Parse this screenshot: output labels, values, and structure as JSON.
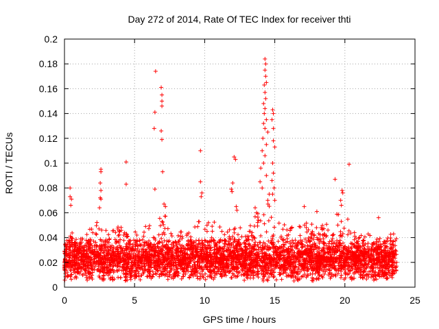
{
  "chart_data": {
    "type": "scatter",
    "title": "Day 272 of 2014, Rate Of TEC Index for receiver thti",
    "xlabel": "GPS time / hours",
    "ylabel": "ROTI / TECUs",
    "xlim": [
      0,
      25
    ],
    "ylim": [
      0,
      0.2
    ],
    "xticks": [
      "0",
      "5",
      "10",
      "15",
      "20",
      "25"
    ],
    "yticks": [
      "0",
      "0.02",
      "0.04",
      "0.06",
      "0.08",
      "0.1",
      "0.12",
      "0.14",
      "0.16",
      "0.18",
      "0.2"
    ],
    "grid": true,
    "marker": "+",
    "series_color": "#ff0000",
    "background_band": {
      "x_range": [
        0,
        23.7
      ],
      "typical_range": [
        0.005,
        0.04
      ],
      "dense_upper_envelope": [
        [
          0.0,
          0.035
        ],
        [
          0.5,
          0.045
        ],
        [
          1.0,
          0.04
        ],
        [
          1.5,
          0.042
        ],
        [
          2.0,
          0.05
        ],
        [
          2.5,
          0.055
        ],
        [
          3.0,
          0.045
        ],
        [
          3.5,
          0.048
        ],
        [
          4.0,
          0.05
        ],
        [
          4.5,
          0.042
        ],
        [
          5.0,
          0.045
        ],
        [
          5.5,
          0.048
        ],
        [
          6.0,
          0.05
        ],
        [
          6.5,
          0.058
        ],
        [
          7.0,
          0.06
        ],
        [
          7.5,
          0.055
        ],
        [
          8.0,
          0.048
        ],
        [
          8.5,
          0.045
        ],
        [
          9.0,
          0.05
        ],
        [
          9.5,
          0.055
        ],
        [
          10.0,
          0.05
        ],
        [
          10.5,
          0.055
        ],
        [
          11.0,
          0.05
        ],
        [
          11.5,
          0.045
        ],
        [
          12.0,
          0.048
        ],
        [
          12.5,
          0.05
        ],
        [
          13.0,
          0.05
        ],
        [
          13.5,
          0.055
        ],
        [
          14.0,
          0.065
        ],
        [
          14.5,
          0.07
        ],
        [
          15.0,
          0.065
        ],
        [
          15.5,
          0.055
        ],
        [
          16.0,
          0.05
        ],
        [
          16.5,
          0.048
        ],
        [
          17.0,
          0.05
        ],
        [
          17.5,
          0.055
        ],
        [
          18.0,
          0.05
        ],
        [
          18.5,
          0.05
        ],
        [
          19.0,
          0.055
        ],
        [
          19.5,
          0.06
        ],
        [
          20.0,
          0.065
        ],
        [
          20.5,
          0.045
        ],
        [
          21.0,
          0.045
        ],
        [
          21.5,
          0.042
        ],
        [
          22.0,
          0.05
        ],
        [
          22.5,
          0.045
        ],
        [
          23.0,
          0.042
        ],
        [
          23.7,
          0.045
        ]
      ]
    },
    "outliers": [
      {
        "x": 0.4,
        "y": 0.08
      },
      {
        "x": 0.4,
        "y": 0.073
      },
      {
        "x": 0.45,
        "y": 0.066
      },
      {
        "x": 0.5,
        "y": 0.071
      },
      {
        "x": 2.6,
        "y": 0.095
      },
      {
        "x": 2.6,
        "y": 0.093
      },
      {
        "x": 2.55,
        "y": 0.084
      },
      {
        "x": 2.6,
        "y": 0.078
      },
      {
        "x": 2.55,
        "y": 0.072
      },
      {
        "x": 2.6,
        "y": 0.071
      },
      {
        "x": 2.5,
        "y": 0.064
      },
      {
        "x": 4.4,
        "y": 0.101
      },
      {
        "x": 4.4,
        "y": 0.083
      },
      {
        "x": 6.5,
        "y": 0.174
      },
      {
        "x": 6.45,
        "y": 0.141
      },
      {
        "x": 6.4,
        "y": 0.128
      },
      {
        "x": 6.45,
        "y": 0.079
      },
      {
        "x": 6.9,
        "y": 0.161
      },
      {
        "x": 6.95,
        "y": 0.155
      },
      {
        "x": 6.95,
        "y": 0.15
      },
      {
        "x": 6.95,
        "y": 0.146
      },
      {
        "x": 6.9,
        "y": 0.126
      },
      {
        "x": 6.95,
        "y": 0.119
      },
      {
        "x": 7.0,
        "y": 0.093
      },
      {
        "x": 7.1,
        "y": 0.067
      },
      {
        "x": 7.2,
        "y": 0.065
      },
      {
        "x": 9.7,
        "y": 0.11
      },
      {
        "x": 9.7,
        "y": 0.085
      },
      {
        "x": 9.8,
        "y": 0.076
      },
      {
        "x": 9.75,
        "y": 0.073
      },
      {
        "x": 12.1,
        "y": 0.105
      },
      {
        "x": 12.2,
        "y": 0.103
      },
      {
        "x": 12.0,
        "y": 0.084
      },
      {
        "x": 11.9,
        "y": 0.079
      },
      {
        "x": 11.95,
        "y": 0.077
      },
      {
        "x": 14.3,
        "y": 0.184
      },
      {
        "x": 14.35,
        "y": 0.18
      },
      {
        "x": 14.3,
        "y": 0.175
      },
      {
        "x": 14.35,
        "y": 0.17
      },
      {
        "x": 14.4,
        "y": 0.165
      },
      {
        "x": 14.25,
        "y": 0.163
      },
      {
        "x": 14.3,
        "y": 0.157
      },
      {
        "x": 14.35,
        "y": 0.152
      },
      {
        "x": 14.2,
        "y": 0.148
      },
      {
        "x": 14.3,
        "y": 0.144
      },
      {
        "x": 14.25,
        "y": 0.14
      },
      {
        "x": 14.4,
        "y": 0.135
      },
      {
        "x": 14.2,
        "y": 0.132
      },
      {
        "x": 14.3,
        "y": 0.128
      },
      {
        "x": 14.5,
        "y": 0.125
      },
      {
        "x": 14.15,
        "y": 0.12
      },
      {
        "x": 14.4,
        "y": 0.115
      },
      {
        "x": 14.1,
        "y": 0.11
      },
      {
        "x": 14.3,
        "y": 0.106
      },
      {
        "x": 14.2,
        "y": 0.1
      },
      {
        "x": 14.0,
        "y": 0.096
      },
      {
        "x": 14.4,
        "y": 0.09
      },
      {
        "x": 13.95,
        "y": 0.085
      },
      {
        "x": 14.1,
        "y": 0.08
      },
      {
        "x": 14.6,
        "y": 0.075
      },
      {
        "x": 14.5,
        "y": 0.07
      },
      {
        "x": 14.85,
        "y": 0.143
      },
      {
        "x": 14.9,
        "y": 0.14
      },
      {
        "x": 14.8,
        "y": 0.135
      },
      {
        "x": 14.9,
        "y": 0.128
      },
      {
        "x": 14.9,
        "y": 0.118
      },
      {
        "x": 15.0,
        "y": 0.113
      },
      {
        "x": 14.85,
        "y": 0.1
      },
      {
        "x": 14.9,
        "y": 0.092
      },
      {
        "x": 14.8,
        "y": 0.086
      },
      {
        "x": 14.95,
        "y": 0.08
      },
      {
        "x": 14.85,
        "y": 0.075
      },
      {
        "x": 15.0,
        "y": 0.07
      },
      {
        "x": 13.6,
        "y": 0.064
      },
      {
        "x": 13.7,
        "y": 0.06
      },
      {
        "x": 12.3,
        "y": 0.062
      },
      {
        "x": 12.25,
        "y": 0.065
      },
      {
        "x": 19.3,
        "y": 0.087
      },
      {
        "x": 19.8,
        "y": 0.078
      },
      {
        "x": 19.85,
        "y": 0.076
      },
      {
        "x": 19.7,
        "y": 0.07
      },
      {
        "x": 19.75,
        "y": 0.066
      },
      {
        "x": 20.3,
        "y": 0.099
      },
      {
        "x": 17.1,
        "y": 0.065
      },
      {
        "x": 18.0,
        "y": 0.061
      },
      {
        "x": 22.4,
        "y": 0.056
      }
    ]
  }
}
